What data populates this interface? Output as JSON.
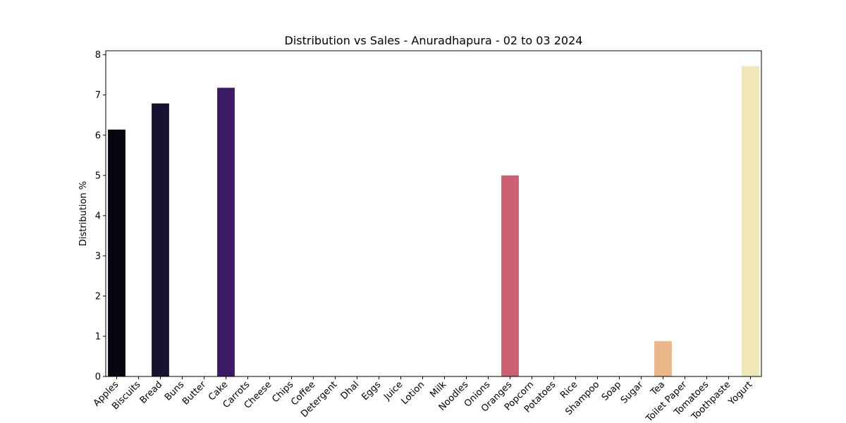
{
  "chart_data": {
    "type": "bar",
    "title": "Distribution vs Sales - Anuradhapura - 02 to 03 2024",
    "xlabel": "",
    "ylabel": "Distribution %",
    "ylim": [
      0,
      8.1
    ],
    "yticks": [
      "0",
      "1",
      "2",
      "3",
      "4",
      "5",
      "6",
      "7",
      "8"
    ],
    "grid": false,
    "legend": "none",
    "categories": [
      "Apples",
      "Biscuits",
      "Bread",
      "Buns",
      "Butter",
      "Cake",
      "Carrots",
      "Cheese",
      "Chips",
      "Coffee",
      "Detergent",
      "Dhal",
      "Eggs",
      "Juice",
      "Lotion",
      "Milk",
      "Noodles",
      "Onions",
      "Oranges",
      "Popcorn",
      "Potatoes",
      "Rice",
      "Shampoo",
      "Soap",
      "Sugar",
      "Tea",
      "Toilet Paper",
      "Tomatoes",
      "Toothpaste",
      "Yogurt"
    ],
    "values": [
      6.14,
      0,
      6.79,
      0,
      0,
      7.18,
      0,
      0,
      0,
      0,
      0,
      0,
      0,
      0,
      0,
      0,
      0,
      0,
      5.0,
      0,
      0,
      0,
      0,
      0,
      0,
      0.88,
      0,
      0,
      0,
      7.72
    ],
    "colors": [
      "#07060f",
      "#0f0b22",
      "#18112f",
      "#1f1440",
      "#2a1756",
      "#3a1b63",
      "#4a1f6e",
      "#5a2479",
      "#6a2a80",
      "#7a2f86",
      "#8a358a",
      "#9a3a8d",
      "#aa3f8e",
      "#b9458d",
      "#c84b89",
      "#d45483",
      "#de5f7c",
      "#e46a74",
      "#cd5f73",
      "#e87a6d",
      "#ec8a6c",
      "#ee9a70",
      "#efaa78",
      "#f0b583",
      "#f1bf8e",
      "#ebb689",
      "#f2d29e",
      "#f3ddab",
      "#f4e6b6",
      "#f2e7b9"
    ]
  }
}
